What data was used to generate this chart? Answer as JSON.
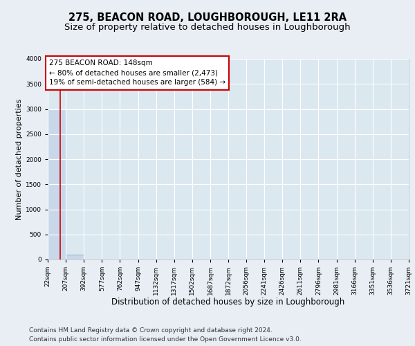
{
  "title1": "275, BEACON ROAD, LOUGHBOROUGH, LE11 2RA",
  "title2": "Size of property relative to detached houses in Loughborough",
  "xlabel": "Distribution of detached houses by size in Loughborough",
  "ylabel": "Number of detached properties",
  "footer1": "Contains HM Land Registry data © Crown copyright and database right 2024.",
  "footer2": "Contains public sector information licensed under the Open Government Licence v3.0.",
  "bin_edges": [
    22,
    207,
    392,
    577,
    762,
    947,
    1132,
    1317,
    1502,
    1687,
    1872,
    2056,
    2241,
    2426,
    2611,
    2796,
    2981,
    3166,
    3351,
    3536,
    3721
  ],
  "bar_heights": [
    3000,
    100,
    0,
    0,
    0,
    0,
    0,
    0,
    0,
    0,
    0,
    0,
    0,
    0,
    0,
    0,
    0,
    0,
    0,
    0
  ],
  "bar_color": "#c8d8ea",
  "bar_edge_color": "#7aaac8",
  "property_value": 148,
  "red_line_color": "#cc0000",
  "annotation_line1": "275 BEACON ROAD: 148sqm",
  "annotation_line2": "← 80% of detached houses are smaller (2,473)",
  "annotation_line3": "19% of semi-detached houses are larger (584) →",
  "annotation_box_color": "#ffffff",
  "annotation_box_edge_color": "#cc0000",
  "ylim": [
    0,
    4000
  ],
  "yticks": [
    0,
    500,
    1000,
    1500,
    2000,
    2500,
    3000,
    3500,
    4000
  ],
  "bg_color": "#e8eef4",
  "plot_bg_color": "#dce8f0",
  "grid_color": "#ffffff",
  "title1_fontsize": 10.5,
  "title2_fontsize": 9.5,
  "xlabel_fontsize": 8.5,
  "ylabel_fontsize": 8,
  "tick_fontsize": 6.5,
  "annotation_fontsize": 7.5,
  "footer_fontsize": 6.5
}
